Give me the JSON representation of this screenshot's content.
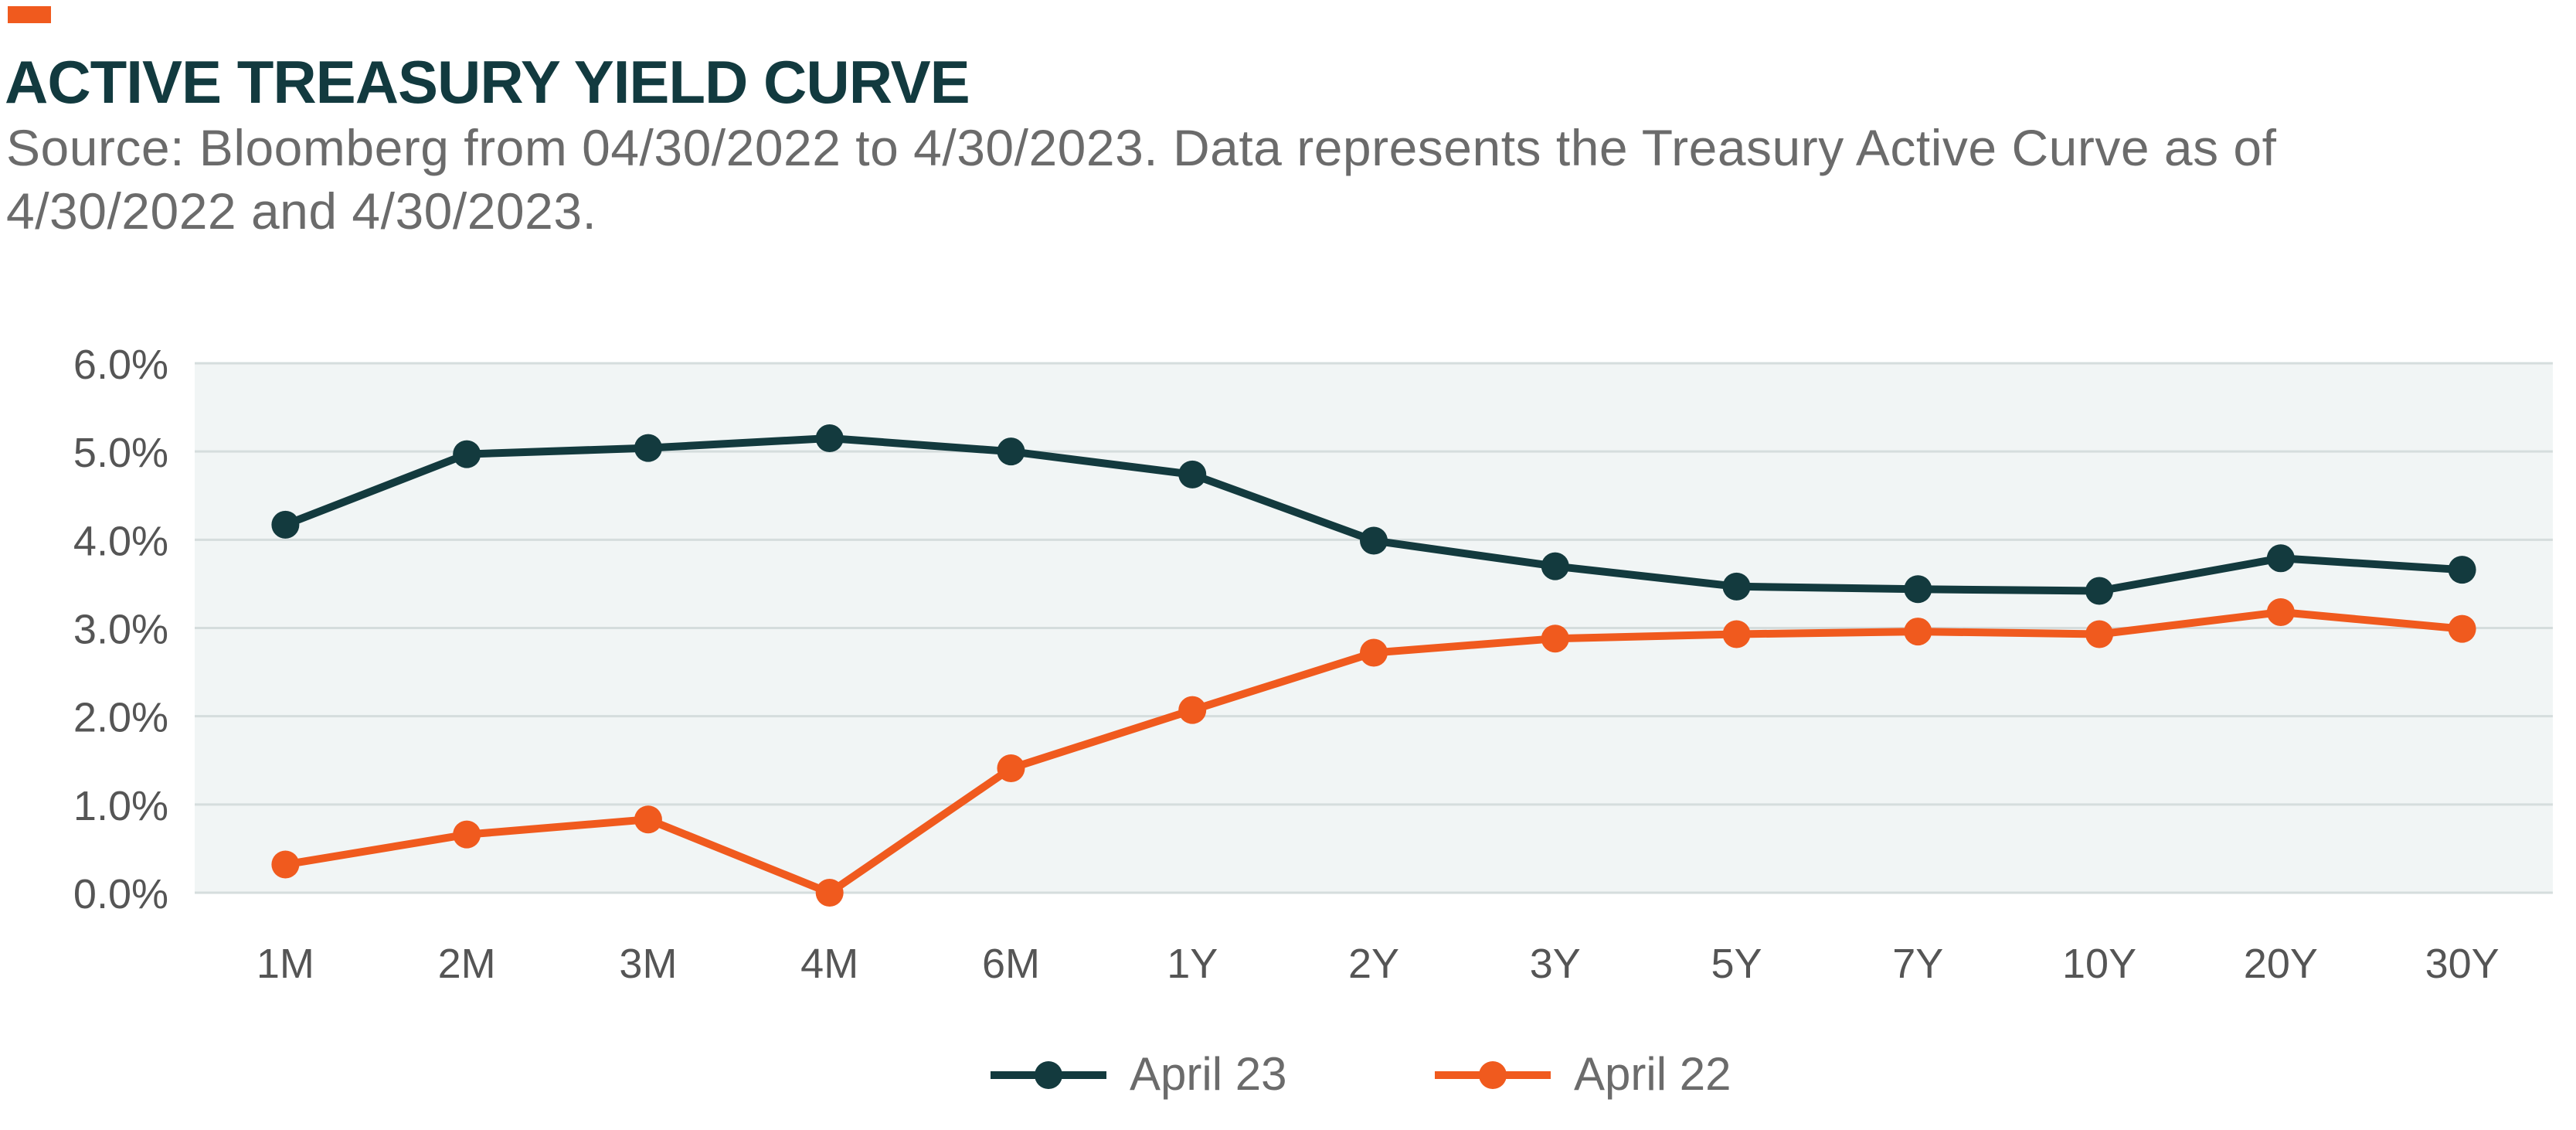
{
  "header": {
    "title": "ACTIVE TREASURY YIELD CURVE",
    "subtitle": "Source: Bloomberg from 04/30/2022 to 4/30/2023. Data represents the Treasury Active Curve as of 4/30/2022 and 4/30/2023."
  },
  "colors": {
    "accent": "#f05a1e",
    "title": "#123a3f",
    "subtitle": "#6b6b6b",
    "plot_background": "#f1f5f5",
    "gridline": "#d5dddd",
    "tick_label": "#555555",
    "series_april_23": "#133a3e",
    "series_april_22": "#f05a1e"
  },
  "legend": {
    "placement": "bottom-center",
    "items": [
      {
        "label": "April 23",
        "color_key": "series_april_23"
      },
      {
        "label": "April 22",
        "color_key": "series_april_22"
      }
    ]
  },
  "chart_data": {
    "type": "line",
    "title": "ACTIVE TREASURY YIELD CURVE",
    "xlabel": "",
    "ylabel": "",
    "categories": [
      "1M",
      "2M",
      "3M",
      "4M",
      "6M",
      "1Y",
      "2Y",
      "3Y",
      "5Y",
      "7Y",
      "10Y",
      "20Y",
      "30Y"
    ],
    "y_ticks": [
      0,
      1,
      2,
      3,
      4,
      5,
      6
    ],
    "y_tick_labels": [
      "0.0%",
      "1.0%",
      "2.0%",
      "3.0%",
      "4.0%",
      "5.0%",
      "6.0%"
    ],
    "ylim": [
      0,
      6
    ],
    "grid": true,
    "legend_position": "bottom-center",
    "series": [
      {
        "name": "April 23",
        "values": [
          4.17,
          4.97,
          5.04,
          5.15,
          5.0,
          4.74,
          3.99,
          3.7,
          3.47,
          3.44,
          3.42,
          3.79,
          3.66
        ]
      },
      {
        "name": "April 22",
        "values": [
          0.32,
          0.66,
          0.83,
          0.0,
          1.41,
          2.07,
          2.72,
          2.88,
          2.93,
          2.96,
          2.93,
          3.18,
          2.99
        ]
      }
    ]
  }
}
